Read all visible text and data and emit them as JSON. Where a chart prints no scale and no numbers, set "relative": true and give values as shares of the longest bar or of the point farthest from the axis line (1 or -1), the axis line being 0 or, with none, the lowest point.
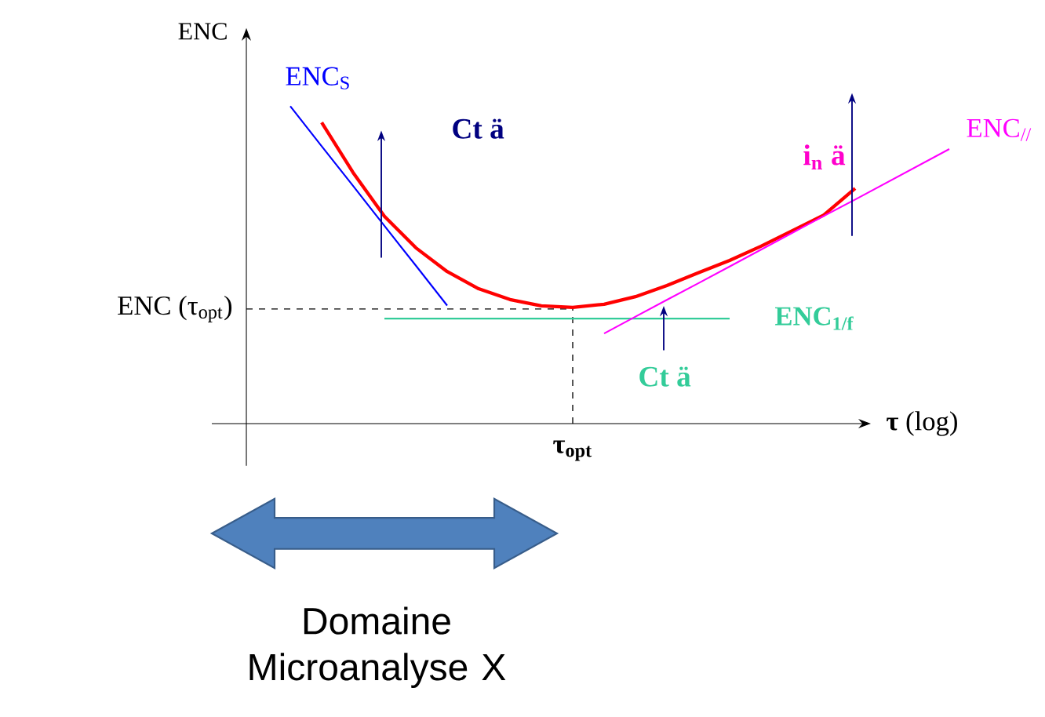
{
  "chart_data": {
    "type": "line",
    "relative": true,
    "xlabel": "**τ** (log)",
    "ylabel": "ENC",
    "categories": [
      null,
      null,
      null,
      null,
      null,
      null,
      null,
      null,
      null,
      null,
      null,
      null,
      null,
      null,
      null,
      null,
      null,
      null,
      null,
      null,
      null,
      null,
      null
    ],
    "series": [
      {
        "color": "#ff0000",
        "values": [
          null,
          null,
          0.949,
          0.791,
          0.653,
          0.554,
          0.479,
          0.425,
          0.391,
          0.371,
          0.366,
          0.376,
          0.4,
          0.435,
          0.475,
          0.514,
          0.559,
          0.608,
          0.657,
          0.741,
          null,
          null,
          null
        ]
      },
      {
        "name": "ENC$_{S}$",
        "color": "#0000ff",
        "values": [
          null,
          1.0,
          0.874,
          0.749,
          0.623,
          0.498,
          0.372,
          null,
          null,
          null,
          null,
          null,
          null,
          null,
          null,
          null,
          null,
          null,
          null,
          null,
          null,
          null,
          null
        ]
      },
      {
        "name": "ENC$_{1/f}$",
        "color": "#33cc99",
        "values": [
          null,
          null,
          null,
          null,
          0.331,
          0.331,
          0.331,
          0.331,
          0.331,
          0.331,
          0.331,
          0.331,
          0.331,
          0.331,
          0.331,
          0.331,
          null,
          null,
          null,
          null,
          null,
          null,
          null
        ]
      },
      {
        "name": "ENC$_{//}$",
        "color": "#ff00ff",
        "values": [
          null,
          null,
          null,
          null,
          null,
          null,
          null,
          null,
          null,
          null,
          null,
          0.284,
          0.337,
          0.39,
          0.442,
          0.495,
          0.548,
          0.601,
          0.654,
          0.706,
          0.759,
          0.812,
          0.865
        ]
      }
    ],
    "ref_lines": [
      {
        "axis": "y",
        "value": 0.361,
        "label": "ENC (τ$_{opt}$)",
        "color": "#000000",
        "line_style": "dashed"
      }
    ],
    "annotations": [
      "Ct ä",
      "i$_{n}$ ä",
      "Ct ä",
      "Domaine Microanalyse X",
      "τ$_{opt}$"
    ]
  }
}
